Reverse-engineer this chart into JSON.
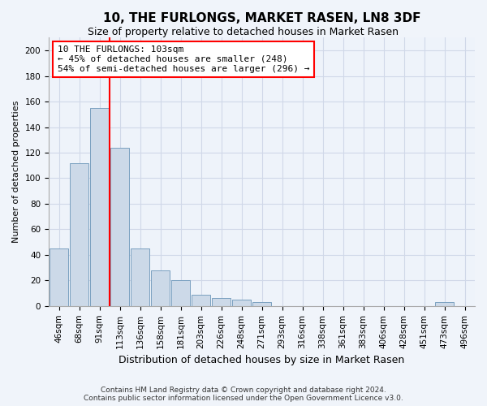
{
  "title": "10, THE FURLONGS, MARKET RASEN, LN8 3DF",
  "subtitle": "Size of property relative to detached houses in Market Rasen",
  "xlabel": "Distribution of detached houses by size in Market Rasen",
  "ylabel": "Number of detached properties",
  "bar_color": "#ccd9e8",
  "bar_edge_color": "#7aa0c0",
  "background_color": "#eef3fa",
  "grid_color": "#d0d8e8",
  "fig_color": "#f0f4fa",
  "categories": [
    "46sqm",
    "68sqm",
    "91sqm",
    "113sqm",
    "136sqm",
    "158sqm",
    "181sqm",
    "203sqm",
    "226sqm",
    "248sqm",
    "271sqm",
    "293sqm",
    "316sqm",
    "338sqm",
    "361sqm",
    "383sqm",
    "406sqm",
    "428sqm",
    "451sqm",
    "473sqm",
    "496sqm"
  ],
  "values": [
    45,
    112,
    155,
    124,
    45,
    28,
    20,
    9,
    6,
    5,
    3,
    0,
    0,
    0,
    0,
    0,
    0,
    0,
    0,
    3,
    0
  ],
  "ylim": [
    0,
    210
  ],
  "yticks": [
    0,
    20,
    40,
    60,
    80,
    100,
    120,
    140,
    160,
    180,
    200
  ],
  "property_label": "10 THE FURLONGS: 103sqm",
  "annotation_line1": "← 45% of detached houses are smaller (248)",
  "annotation_line2": "54% of semi-detached houses are larger (296) →",
  "vline_x": 2.5,
  "footer1": "Contains HM Land Registry data © Crown copyright and database right 2024.",
  "footer2": "Contains public sector information licensed under the Open Government Licence v3.0.",
  "title_fontsize": 11,
  "subtitle_fontsize": 9,
  "xlabel_fontsize": 9,
  "ylabel_fontsize": 8,
  "tick_fontsize": 7.5,
  "annot_fontsize": 8,
  "footer_fontsize": 6.5
}
